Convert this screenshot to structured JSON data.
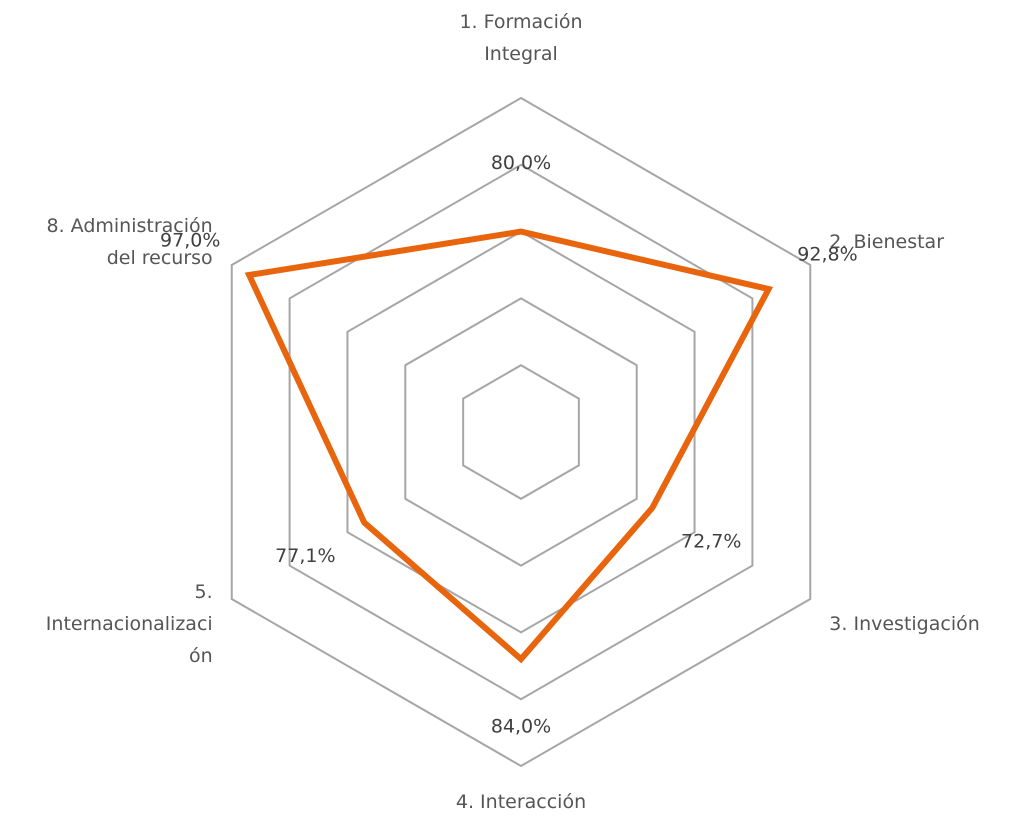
{
  "chart_data": {
    "type": "radar",
    "categories": [
      "1. Formación\nIntegral",
      "2. Bienestar",
      "3. Investigación",
      "4. Interacción",
      "5.\nInternacionalizaci\nón",
      "8. Administración\ndel recurso"
    ],
    "series": [
      {
        "color": "#e8650e",
        "values": [
          80.0,
          92.8,
          72.7,
          84.0,
          77.1,
          97.0
        ],
        "value_labels": [
          "80,0%",
          "92,8%",
          "72,7%",
          "84,0%",
          "77,1%",
          "97,0%"
        ]
      }
    ],
    "ylim": [
      50,
      100
    ],
    "yticks": [
      60,
      70,
      80,
      90,
      100
    ],
    "grid": true
  }
}
